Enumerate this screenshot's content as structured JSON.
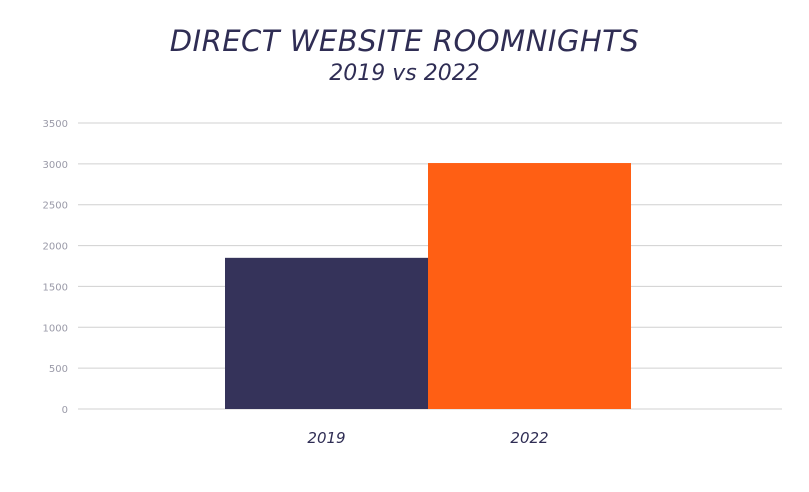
{
  "chart_data": {
    "type": "bar",
    "title": "DIRECT WEBSITE ROOMNIGHTS",
    "subtitle": "2019 vs 2022",
    "categories": [
      "2019",
      "2022"
    ],
    "values": [
      1850,
      3010
    ],
    "bar_colors": [
      "#35335a",
      "#ff5f14"
    ],
    "ylim": [
      0,
      3500
    ],
    "yticks": [
      0,
      500,
      1000,
      1500,
      2000,
      2500,
      3000,
      3500
    ],
    "ytick_labels": [
      "0",
      "500",
      "1000",
      "1500",
      "2000",
      "2500",
      "3000",
      "3500"
    ],
    "grid": true,
    "gridline_color": "#d0d0d0",
    "axis_text_color": "#2f2d54",
    "xlabel": "",
    "ylabel": ""
  }
}
